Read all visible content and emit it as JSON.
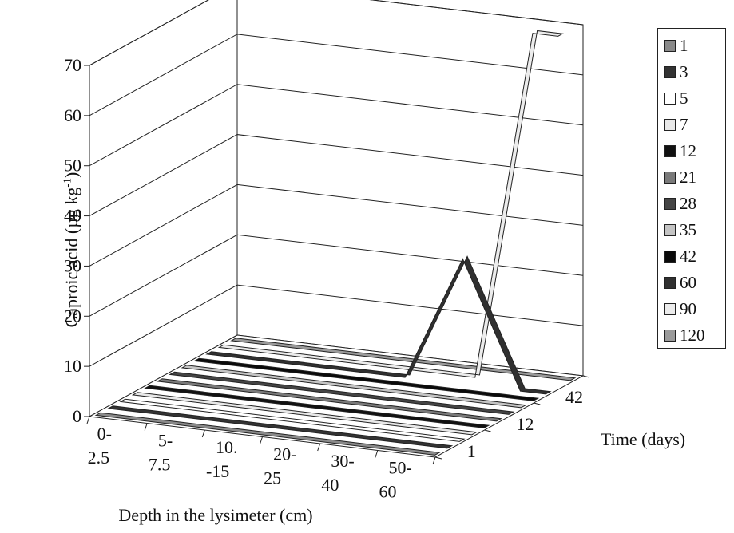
{
  "chart_data": {
    "type": "line3d",
    "ylabel": "Caproic acid (µg kg",
    "ylabel_sup": "-1",
    "ylabel_end": ")",
    "xlabel": "Depth in the lysimeter (cm)",
    "zlabel": "Time (days)",
    "ylim": [
      0,
      70
    ],
    "yticks": [
      "0",
      "10",
      "20",
      "30",
      "40",
      "50",
      "60",
      "70"
    ],
    "categories": [
      [
        "0-",
        "2.5"
      ],
      [
        "5-",
        "7.5"
      ],
      [
        "10.",
        "-15"
      ],
      [
        "20-",
        "25"
      ],
      [
        "30-",
        "40"
      ],
      [
        "50-",
        "60"
      ]
    ],
    "ztick_labels": [
      {
        "label": "1",
        "series_index": 0
      },
      {
        "label": "12",
        "series_index": 4
      },
      {
        "label": "42",
        "series_index": 8
      }
    ],
    "grid": true,
    "legend_position": "right",
    "series": [
      {
        "name": "1",
        "color": "#8a8a8a",
        "values": [
          0,
          0,
          0,
          0,
          0,
          0
        ]
      },
      {
        "name": "3",
        "color": "#333333",
        "values": [
          0,
          0,
          0,
          0,
          0,
          0
        ]
      },
      {
        "name": "5",
        "color": "#ffffff",
        "values": [
          0,
          0,
          0,
          0,
          0,
          0
        ]
      },
      {
        "name": "7",
        "color": "#e8e8e8",
        "values": [
          0,
          0,
          0,
          0,
          0,
          0
        ]
      },
      {
        "name": "12",
        "color": "#111111",
        "values": [
          0,
          0,
          0,
          0,
          0,
          0
        ]
      },
      {
        "name": "21",
        "color": "#7a7a7a",
        "values": [
          0,
          0,
          0,
          0,
          0,
          0
        ]
      },
      {
        "name": "28",
        "color": "#444444",
        "values": [
          0,
          0,
          0,
          0,
          0,
          0
        ]
      },
      {
        "name": "35",
        "color": "#c4c4c4",
        "values": [
          0,
          0,
          0,
          0,
          0,
          0
        ]
      },
      {
        "name": "42",
        "color": "#0a0a0a",
        "values": [
          0,
          0,
          0,
          0,
          0,
          0
        ]
      },
      {
        "name": "60",
        "color": "#303030",
        "values": [
          0,
          0,
          0,
          0,
          25,
          0
        ]
      },
      {
        "name": "90",
        "color": "#ececec",
        "values": [
          0,
          0,
          0,
          0,
          0,
          70
        ]
      },
      {
        "name": "120",
        "color": "#9a9a9a",
        "values": [
          0,
          0,
          0,
          0,
          0,
          0
        ]
      }
    ]
  }
}
